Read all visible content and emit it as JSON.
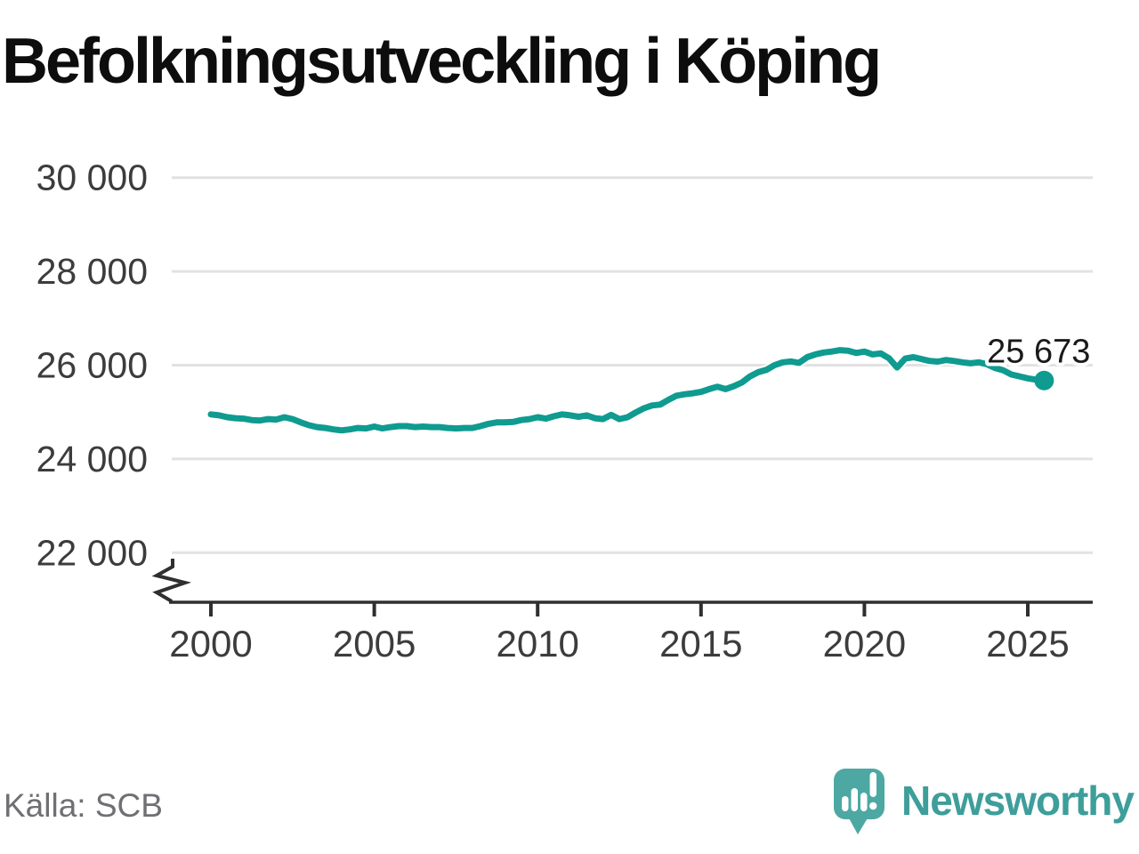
{
  "title": "Befolkningsutveckling i Köping",
  "source": "Källa: SCB",
  "branding": {
    "name": "Newsworthy",
    "icon": "newsworthy-speech-bubble-chart-icon"
  },
  "end_label": "25 673",
  "colors": {
    "line": "#0f9b90",
    "grid": "#e2e2e2",
    "axis": "#2f2f2f",
    "tick_text": "#3c3c3c",
    "end_label_text": "#1a1a1a",
    "logo_teal": "#4da8a3",
    "wordmark_teal": "#3d9e9a"
  },
  "chart_data": {
    "type": "line",
    "title": "Befolkningsutveckling i Köping",
    "xlabel": "",
    "ylabel": "",
    "x_ticks": [
      2000,
      2005,
      2010,
      2015,
      2020,
      2025
    ],
    "x_tick_labels": [
      "2000",
      "2005",
      "2010",
      "2015",
      "2020",
      "2025"
    ],
    "y_ticks": [
      30000,
      28000,
      26000,
      24000,
      22000
    ],
    "y_tick_labels": [
      "30 000",
      "28 000",
      "26 000",
      "24 000",
      "22 000"
    ],
    "ylim": [
      22000,
      30000
    ],
    "axis_break": true,
    "grid": "horizontal",
    "last_value": 25673,
    "points": [
      [
        2000.0,
        24950
      ],
      [
        2000.25,
        24930
      ],
      [
        2000.5,
        24890
      ],
      [
        2000.75,
        24870
      ],
      [
        2001.0,
        24860
      ],
      [
        2001.25,
        24830
      ],
      [
        2001.5,
        24820
      ],
      [
        2001.75,
        24850
      ],
      [
        2002.0,
        24840
      ],
      [
        2002.25,
        24890
      ],
      [
        2002.5,
        24850
      ],
      [
        2002.75,
        24780
      ],
      [
        2003.0,
        24720
      ],
      [
        2003.25,
        24680
      ],
      [
        2003.5,
        24660
      ],
      [
        2003.75,
        24630
      ],
      [
        2004.0,
        24610
      ],
      [
        2004.25,
        24630
      ],
      [
        2004.5,
        24660
      ],
      [
        2004.75,
        24650
      ],
      [
        2005.0,
        24690
      ],
      [
        2005.25,
        24650
      ],
      [
        2005.5,
        24680
      ],
      [
        2005.75,
        24700
      ],
      [
        2006.0,
        24700
      ],
      [
        2006.25,
        24680
      ],
      [
        2006.5,
        24690
      ],
      [
        2006.75,
        24680
      ],
      [
        2007.0,
        24680
      ],
      [
        2007.25,
        24660
      ],
      [
        2007.5,
        24650
      ],
      [
        2007.75,
        24660
      ],
      [
        2008.0,
        24660
      ],
      [
        2008.25,
        24700
      ],
      [
        2008.5,
        24750
      ],
      [
        2008.75,
        24780
      ],
      [
        2009.0,
        24780
      ],
      [
        2009.25,
        24790
      ],
      [
        2009.5,
        24830
      ],
      [
        2009.75,
        24850
      ],
      [
        2010.0,
        24890
      ],
      [
        2010.25,
        24860
      ],
      [
        2010.5,
        24910
      ],
      [
        2010.75,
        24950
      ],
      [
        2011.0,
        24930
      ],
      [
        2011.25,
        24900
      ],
      [
        2011.5,
        24930
      ],
      [
        2011.75,
        24870
      ],
      [
        2012.0,
        24850
      ],
      [
        2012.25,
        24940
      ],
      [
        2012.5,
        24850
      ],
      [
        2012.75,
        24890
      ],
      [
        2013.0,
        24990
      ],
      [
        2013.25,
        25080
      ],
      [
        2013.5,
        25140
      ],
      [
        2013.75,
        25160
      ],
      [
        2014.0,
        25260
      ],
      [
        2014.25,
        25350
      ],
      [
        2014.5,
        25380
      ],
      [
        2014.75,
        25400
      ],
      [
        2015.0,
        25430
      ],
      [
        2015.25,
        25490
      ],
      [
        2015.5,
        25540
      ],
      [
        2015.75,
        25490
      ],
      [
        2016.0,
        25550
      ],
      [
        2016.25,
        25630
      ],
      [
        2016.5,
        25760
      ],
      [
        2016.75,
        25850
      ],
      [
        2017.0,
        25900
      ],
      [
        2017.25,
        26000
      ],
      [
        2017.5,
        26060
      ],
      [
        2017.75,
        26080
      ],
      [
        2018.0,
        26050
      ],
      [
        2018.25,
        26170
      ],
      [
        2018.5,
        26230
      ],
      [
        2018.75,
        26270
      ],
      [
        2019.0,
        26290
      ],
      [
        2019.25,
        26320
      ],
      [
        2019.5,
        26310
      ],
      [
        2019.75,
        26260
      ],
      [
        2020.0,
        26290
      ],
      [
        2020.25,
        26230
      ],
      [
        2020.5,
        26250
      ],
      [
        2020.75,
        26150
      ],
      [
        2021.0,
        25950
      ],
      [
        2021.25,
        26140
      ],
      [
        2021.5,
        26170
      ],
      [
        2021.75,
        26130
      ],
      [
        2022.0,
        26090
      ],
      [
        2022.25,
        26075
      ],
      [
        2022.5,
        26110
      ],
      [
        2022.75,
        26090
      ],
      [
        2023.0,
        26060
      ],
      [
        2023.25,
        26040
      ],
      [
        2023.5,
        26060
      ],
      [
        2023.75,
        26020
      ],
      [
        2024.0,
        25940
      ],
      [
        2024.25,
        25890
      ],
      [
        2024.5,
        25800
      ],
      [
        2024.75,
        25760
      ],
      [
        2025.0,
        25720
      ],
      [
        2025.25,
        25690
      ],
      [
        2025.5,
        25673
      ]
    ]
  }
}
